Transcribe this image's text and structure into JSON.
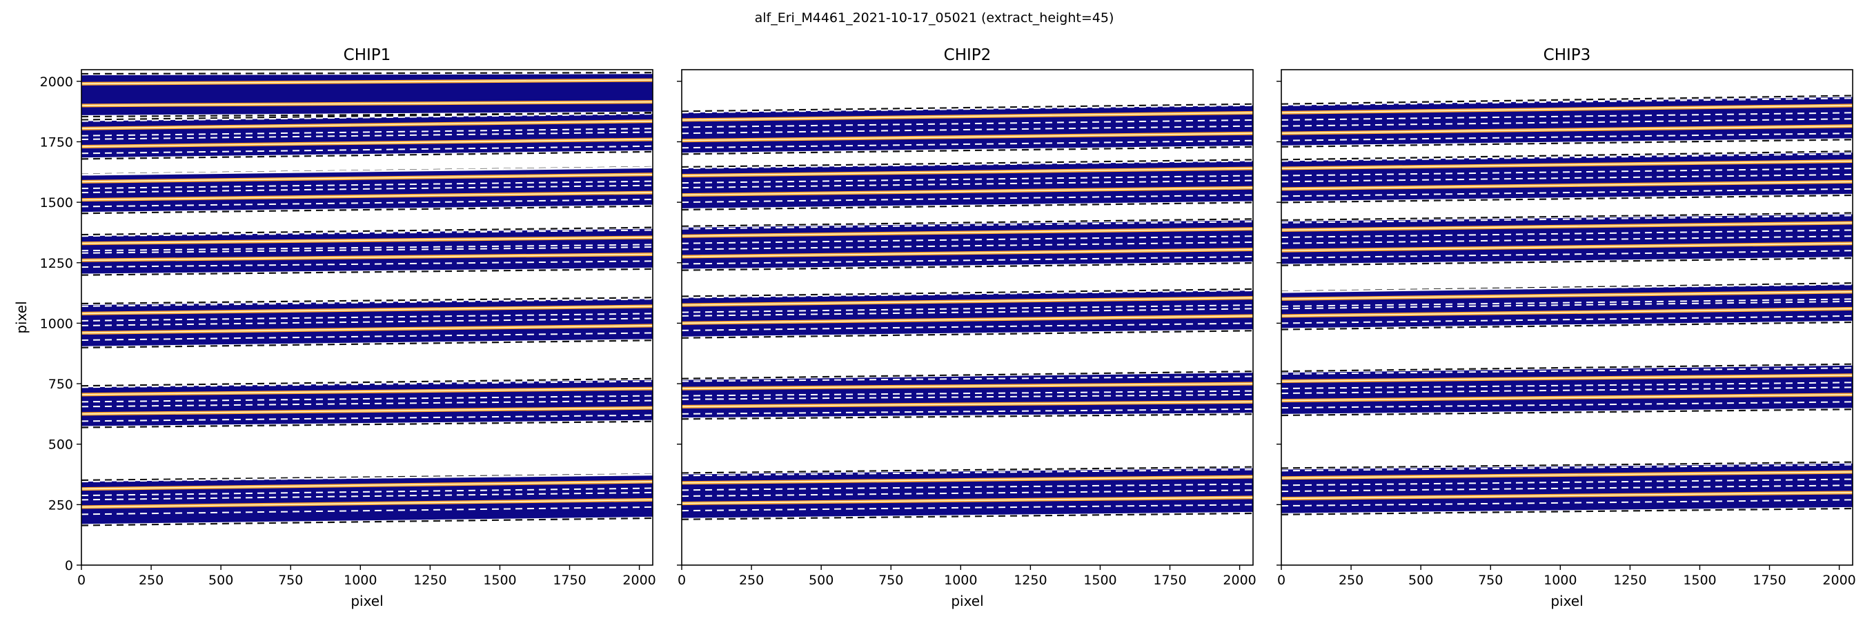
{
  "figure": {
    "suptitle": "alf_Eri_M4461_2021-10-17_05021  (extract_height=45)"
  },
  "colors": {
    "order_fill": "#0d0887",
    "trace": "#fca636",
    "trace_core": "#fff5c8",
    "extract_edge": "#ffffff",
    "order_edge": "#111111",
    "background": "#ffffff"
  },
  "chart_data": [
    {
      "type": "heatmap",
      "title": "CHIP1",
      "xlabel": "pixel",
      "ylabel": "pixel",
      "xlim": [
        0,
        2048
      ],
      "ylim": [
        0,
        2048
      ],
      "xticks": [
        0,
        250,
        500,
        750,
        1000,
        1250,
        1500,
        1750,
        2000
      ],
      "yticks": [
        0,
        250,
        500,
        750,
        1000,
        1250,
        1500,
        1750,
        2000
      ],
      "yticklabels_visible": true,
      "orders": [
        {
          "lower": [
            170,
            200
          ],
          "upper": [
            345,
            370
          ],
          "traces": [
            240,
            315
          ],
          "extract": [
            [
              210,
              270
            ],
            [
              288,
              345
            ]
          ]
        },
        {
          "lower": [
            575,
            600
          ],
          "upper": [
            735,
            765
          ],
          "traces": [
            625,
            705
          ],
          "extract": [
            [
              595,
              655
            ],
            [
              675,
              735
            ]
          ]
        },
        {
          "lower": [
            905,
            935
          ],
          "upper": [
            1075,
            1100
          ],
          "traces": [
            960,
            1040
          ],
          "extract": [
            [
              930,
              990
            ],
            [
              1010,
              1070
            ]
          ]
        },
        {
          "lower": [
            1205,
            1230
          ],
          "upper": [
            1360,
            1390
          ],
          "traces": [
            1260,
            1330
          ],
          "extract": [
            [
              1232,
              1290
            ],
            [
              1300,
              1360
            ]
          ]
        },
        {
          "lower": [
            1460,
            1490
          ],
          "upper": [
            1610,
            1640
          ],
          "traces": [
            1510,
            1585
          ],
          "extract": [
            [
              1482,
              1540
            ],
            [
              1557,
              1615
            ]
          ]
        },
        {
          "lower": [
            1685,
            1715
          ],
          "upper": [
            1835,
            1865
          ],
          "traces": [
            1730,
            1805
          ],
          "extract": [
            [
              1702,
              1760
            ],
            [
              1775,
              1835
            ]
          ]
        },
        {
          "lower": [
            1860,
            1875
          ],
          "upper": [
            2025,
            2030
          ],
          "traces": [
            1900,
            1990
          ],
          "extract": []
        }
      ]
    },
    {
      "type": "heatmap",
      "title": "CHIP2",
      "xlabel": "pixel",
      "ylabel": "",
      "xlim": [
        0,
        2048
      ],
      "ylim": [
        0,
        2048
      ],
      "xticks": [
        0,
        250,
        500,
        750,
        1000,
        1250,
        1500,
        1750,
        2000
      ],
      "yticks": [
        0,
        250,
        500,
        750,
        1000,
        1250,
        1500,
        1750,
        2000
      ],
      "yticklabels_visible": false,
      "orders": [
        {
          "lower": [
            195,
            220
          ],
          "upper": [
            375,
            400
          ],
          "traces": [
            255,
            340
          ],
          "extract": [
            [
              225,
              285
            ],
            [
              310,
              370
            ]
          ]
        },
        {
          "lower": [
            610,
            630
          ],
          "upper": [
            765,
            795
          ],
          "traces": [
            655,
            730
          ],
          "extract": [
            [
              625,
              685
            ],
            [
              700,
              760
            ]
          ]
        },
        {
          "lower": [
            945,
            975
          ],
          "upper": [
            1105,
            1135
          ],
          "traces": [
            1000,
            1075
          ],
          "extract": [
            [
              970,
              1030
            ],
            [
              1045,
              1105
            ]
          ]
        },
        {
          "lower": [
            1225,
            1255
          ],
          "upper": [
            1395,
            1425
          ],
          "traces": [
            1275,
            1360
          ],
          "extract": [
            [
              1245,
              1305
            ],
            [
              1330,
              1390
            ]
          ]
        },
        {
          "lower": [
            1475,
            1505
          ],
          "upper": [
            1640,
            1670
          ],
          "traces": [
            1530,
            1610
          ],
          "extract": [
            [
              1500,
              1560
            ],
            [
              1580,
              1640
            ]
          ]
        },
        {
          "lower": [
            1705,
            1735
          ],
          "upper": [
            1870,
            1900
          ],
          "traces": [
            1755,
            1840
          ],
          "extract": [
            [
              1725,
              1785
            ],
            [
              1810,
              1870
            ]
          ]
        }
      ]
    },
    {
      "type": "heatmap",
      "title": "CHIP3",
      "xlabel": "pixel",
      "ylabel": "",
      "xlim": [
        0,
        2048
      ],
      "ylim": [
        0,
        2048
      ],
      "xticks": [
        0,
        250,
        500,
        750,
        1000,
        1250,
        1500,
        1750,
        2000
      ],
      "yticks": [
        0,
        250,
        500,
        750,
        1000,
        1250,
        1500,
        1750,
        2000
      ],
      "yticklabels_visible": false,
      "orders": [
        {
          "lower": [
            215,
            240
          ],
          "upper": [
            395,
            420
          ],
          "traces": [
            275,
            360
          ],
          "extract": [
            [
              245,
              305
            ],
            [
              330,
              390
            ]
          ]
        },
        {
          "lower": [
            625,
            650
          ],
          "upper": [
            795,
            825
          ],
          "traces": [
            680,
            760
          ],
          "extract": [
            [
              650,
              710
            ],
            [
              730,
              790
            ]
          ]
        },
        {
          "lower": [
            980,
            1010
          ],
          "upper": [
            1125,
            1160
          ],
          "traces": [
            1030,
            1100
          ],
          "extract": [
            [
              1000,
              1060
            ],
            [
              1070,
              1130
            ]
          ]
        },
        {
          "lower": [
            1245,
            1275
          ],
          "upper": [
            1420,
            1450
          ],
          "traces": [
            1300,
            1385
          ],
          "extract": [
            [
              1270,
              1330
            ],
            [
              1355,
              1415
            ]
          ]
        },
        {
          "lower": [
            1505,
            1535
          ],
          "upper": [
            1670,
            1705
          ],
          "traces": [
            1555,
            1640
          ],
          "extract": [
            [
              1525,
              1585
            ],
            [
              1610,
              1670
            ]
          ]
        },
        {
          "lower": [
            1735,
            1765
          ],
          "upper": [
            1900,
            1935
          ],
          "traces": [
            1785,
            1870
          ],
          "extract": [
            [
              1755,
              1815
            ],
            [
              1840,
              1900
            ]
          ]
        }
      ]
    }
  ]
}
